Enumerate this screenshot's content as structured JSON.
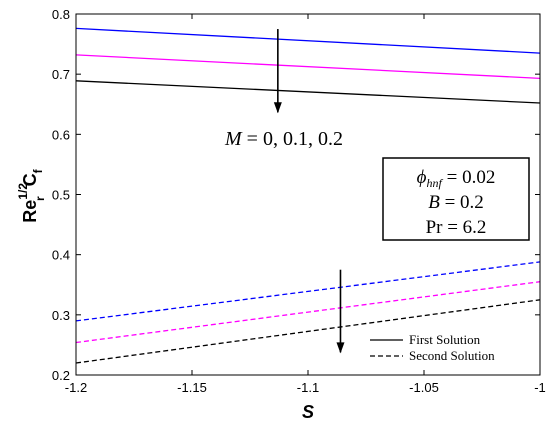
{
  "chart_data": {
    "type": "line",
    "xlabel": "S",
    "ylabel": {
      "base": "Re",
      "sup": "1/2",
      "sub": "r",
      "main": "C",
      "main_sub": "f"
    },
    "xlim": [
      -1.2,
      -1.0
    ],
    "ylim": [
      0.2,
      0.8
    ],
    "xticks": [
      -1.2,
      -1.15,
      -1.1,
      -1.05,
      -1.0
    ],
    "xtick_labels": [
      "-1.2",
      "-1.15",
      "-1.1",
      "-1.05",
      "-1"
    ],
    "yticks": [
      0.2,
      0.3,
      0.4,
      0.5,
      0.6,
      0.7,
      0.8
    ],
    "ytick_labels": [
      "0.2",
      "0.3",
      "0.4",
      "0.5",
      "0.6",
      "0.7",
      "0.8"
    ],
    "grid": false,
    "series": [
      {
        "color": "#0000ff",
        "style": "solid",
        "x": [
          -1.2,
          -1.0
        ],
        "y": [
          0.776,
          0.735
        ]
      },
      {
        "color": "#ff00ff",
        "style": "solid",
        "x": [
          -1.2,
          -1.0
        ],
        "y": [
          0.732,
          0.693
        ]
      },
      {
        "color": "#000000",
        "style": "solid",
        "x": [
          -1.2,
          -1.0
        ],
        "y": [
          0.689,
          0.652
        ]
      },
      {
        "color": "#0000ff",
        "style": "dashed",
        "x": [
          -1.2,
          -1.0
        ],
        "y": [
          0.29,
          0.388
        ]
      },
      {
        "color": "#ff00ff",
        "style": "dashed",
        "x": [
          -1.2,
          -1.0
        ],
        "y": [
          0.254,
          0.355
        ]
      },
      {
        "color": "#000000",
        "style": "dashed",
        "x": [
          -1.2,
          -1.0
        ],
        "y": [
          0.22,
          0.325
        ]
      }
    ],
    "annotations": {
      "m_label": {
        "lhs": "M",
        "rhs": " = 0, 0.1, 0.2"
      },
      "arrow_upper": {
        "x": -1.113,
        "y_from": 0.775,
        "y_to": 0.635
      },
      "arrow_lower": {
        "x": -1.086,
        "y_from": 0.375,
        "y_to": 0.236
      },
      "params_box": [
        {
          "sym": "ϕ",
          "sub": "hnf",
          "rhs": " = 0.02"
        },
        {
          "sym": "B",
          "sub": "",
          "rhs": " = 0.2"
        },
        {
          "sym": "Pr",
          "sub": "",
          "rhs": " = 6.2"
        }
      ]
    },
    "legend": {
      "position": "bottom-right",
      "entries": [
        {
          "label": "First Solution",
          "style": "solid"
        },
        {
          "label": "Second Solution",
          "style": "dashed"
        }
      ]
    }
  }
}
